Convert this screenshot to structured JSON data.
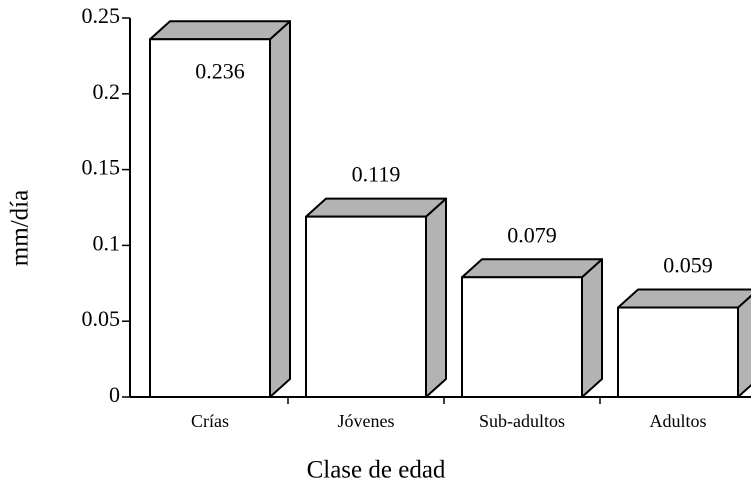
{
  "chart_data": {
    "type": "bar3d",
    "categories": [
      "Crías",
      "Jóvenes",
      "Sub-adultos",
      "Adultos"
    ],
    "values": [
      0.236,
      0.119,
      0.079,
      0.059
    ],
    "xlabel": "Clase de edad",
    "ylabel": "mm/día",
    "ylim": [
      0,
      0.25
    ],
    "yticks": [
      0,
      0.05,
      0.1,
      0.15,
      0.2,
      0.25
    ],
    "color": "#ffffff",
    "side_color": "#b3b3b3",
    "grid": false
  }
}
